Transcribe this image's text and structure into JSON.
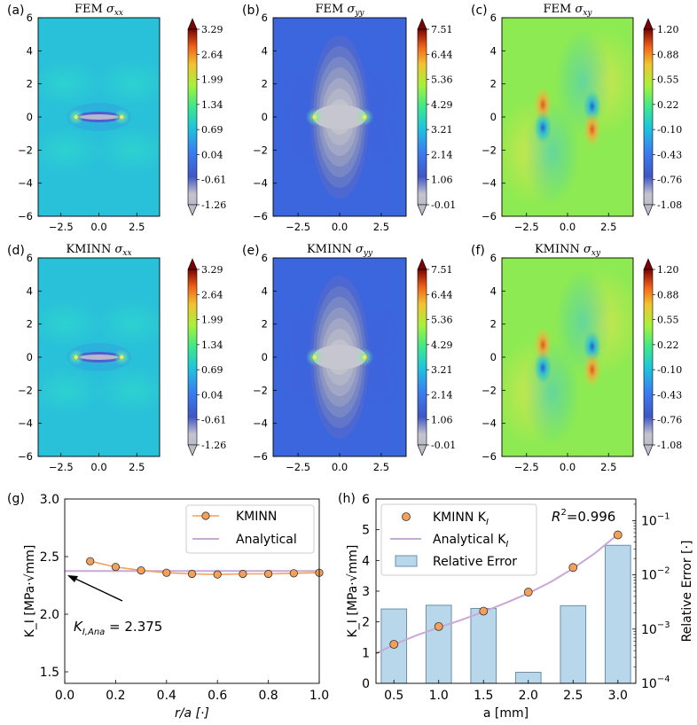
{
  "chart_data": [
    {
      "type": "heatmap",
      "panel": "(a)",
      "title": "FEM σxx",
      "title_main": "FEM",
      "title_sym": "σ",
      "title_sub": "xx",
      "x_ticks": [
        "−2.5",
        "0.0",
        "2.5"
      ],
      "x_tick_values": [
        -2.5,
        0.0,
        2.5
      ],
      "xlim": [
        -4,
        4
      ],
      "y_ticks": [
        "−6",
        "−4",
        "−2",
        "0",
        "2",
        "4",
        "6"
      ],
      "y_tick_values": [
        -6,
        -4,
        -2,
        0,
        2,
        4,
        6
      ],
      "ylim": [
        -6,
        6
      ],
      "colorbar_ticks": [
        "3.29",
        "2.64",
        "1.99",
        "1.34",
        "0.69",
        "0.04",
        "-0.61",
        "-1.26"
      ],
      "colorbar_range": [
        -1.26,
        3.29
      ]
    },
    {
      "type": "heatmap",
      "panel": "(b)",
      "title": "FEM σyy",
      "title_main": "FEM",
      "title_sym": "σ",
      "title_sub": "yy",
      "x_ticks": [
        "−2.5",
        "0.0",
        "2.5"
      ],
      "x_tick_values": [
        -2.5,
        0.0,
        2.5
      ],
      "xlim": [
        -4,
        4
      ],
      "y_ticks": [
        "−6",
        "−4",
        "−2",
        "0",
        "2",
        "4",
        "6"
      ],
      "y_tick_values": [
        -6,
        -4,
        -2,
        0,
        2,
        4,
        6
      ],
      "ylim": [
        -6,
        6
      ],
      "colorbar_ticks": [
        "7.51",
        "6.44",
        "5.36",
        "4.29",
        "3.21",
        "2.14",
        "1.06",
        "-0.01"
      ],
      "colorbar_range": [
        -0.01,
        7.51
      ]
    },
    {
      "type": "heatmap",
      "panel": "(c)",
      "title": "FEM σxy",
      "title_main": "FEM",
      "title_sym": "σ",
      "title_sub": "xy",
      "x_ticks": [
        "−2.5",
        "0.0",
        "2.5"
      ],
      "x_tick_values": [
        -2.5,
        0.0,
        2.5
      ],
      "xlim": [
        -4,
        4
      ],
      "y_ticks": [
        "−6",
        "−4",
        "−2",
        "0",
        "2",
        "4",
        "6"
      ],
      "y_tick_values": [
        -6,
        -4,
        -2,
        0,
        2,
        4,
        6
      ],
      "ylim": [
        -6,
        6
      ],
      "colorbar_ticks": [
        "1.20",
        "0.88",
        "0.55",
        "0.22",
        "-0.10",
        "-0.43",
        "-0.76",
        "-1.08"
      ],
      "colorbar_range": [
        -1.08,
        1.2
      ]
    },
    {
      "type": "heatmap",
      "panel": "(d)",
      "title": "KMINN σxx",
      "title_main": "KMINN",
      "title_sym": "σ",
      "title_sub": "xx",
      "x_ticks": [
        "−2.5",
        "0.0",
        "2.5"
      ],
      "x_tick_values": [
        -2.5,
        0.0,
        2.5
      ],
      "xlim": [
        -4,
        4
      ],
      "y_ticks": [
        "−6",
        "−4",
        "−2",
        "0",
        "2",
        "4",
        "6"
      ],
      "y_tick_values": [
        -6,
        -4,
        -2,
        0,
        2,
        4,
        6
      ],
      "ylim": [
        -6,
        6
      ],
      "colorbar_ticks": [
        "3.29",
        "2.64",
        "1.99",
        "1.34",
        "0.69",
        "0.04",
        "-0.61",
        "-1.26"
      ],
      "colorbar_range": [
        -1.26,
        3.29
      ]
    },
    {
      "type": "heatmap",
      "panel": "(e)",
      "title": "KMINN σyy",
      "title_main": "KMINN",
      "title_sym": "σ",
      "title_sub": "yy",
      "x_ticks": [
        "−2.5",
        "0.0",
        "2.5"
      ],
      "x_tick_values": [
        -2.5,
        0.0,
        2.5
      ],
      "xlim": [
        -4,
        4
      ],
      "y_ticks": [
        "−6",
        "−4",
        "−2",
        "0",
        "2",
        "4",
        "6"
      ],
      "y_tick_values": [
        -6,
        -4,
        -2,
        0,
        2,
        4,
        6
      ],
      "ylim": [
        -6,
        6
      ],
      "colorbar_ticks": [
        "7.51",
        "6.44",
        "5.36",
        "4.29",
        "3.21",
        "2.14",
        "1.06",
        "-0.01"
      ],
      "colorbar_range": [
        -0.01,
        7.51
      ]
    },
    {
      "type": "heatmap",
      "panel": "(f)",
      "title": "KMINN σxy",
      "title_main": "KMINN",
      "title_sym": "σ",
      "title_sub": "xy",
      "x_ticks": [
        "−2.5",
        "0.0",
        "2.5"
      ],
      "x_tick_values": [
        -2.5,
        0.0,
        2.5
      ],
      "xlim": [
        -4,
        4
      ],
      "y_ticks": [
        "−6",
        "−4",
        "−2",
        "0",
        "2",
        "4",
        "6"
      ],
      "y_tick_values": [
        -6,
        -4,
        -2,
        0,
        2,
        4,
        6
      ],
      "ylim": [
        -6,
        6
      ],
      "colorbar_ticks": [
        "1.20",
        "0.88",
        "0.55",
        "0.22",
        "-0.10",
        "-0.43",
        "-0.76",
        "-1.08"
      ],
      "colorbar_range": [
        -1.08,
        1.2
      ]
    },
    {
      "type": "line",
      "panel": "(g)",
      "xlabel": "r/a [·]",
      "ylabel": "K_I [MPa·√mm]",
      "xlim": [
        0.0,
        1.0
      ],
      "ylim": [
        1.4,
        3.0
      ],
      "x_ticks": [
        "0.0",
        "0.2",
        "0.4",
        "0.6",
        "0.8",
        "1.0"
      ],
      "x_tick_values": [
        0.0,
        0.2,
        0.4,
        0.6,
        0.8,
        1.0
      ],
      "y_ticks": [
        "1.5",
        "2.0",
        "2.5",
        "3.0"
      ],
      "y_tick_values": [
        1.5,
        2.0,
        2.5,
        3.0
      ],
      "series": [
        {
          "name": "KMINN",
          "color": "#f5a05a",
          "x": [
            0.1,
            0.2,
            0.3,
            0.4,
            0.5,
            0.6,
            0.7,
            0.8,
            0.9,
            1.0
          ],
          "values": [
            2.46,
            2.41,
            2.38,
            2.36,
            2.35,
            2.345,
            2.35,
            2.35,
            2.355,
            2.36
          ]
        },
        {
          "name": "Analytical",
          "color": "#c8a8d8",
          "x": [
            0.0,
            1.0
          ],
          "values": [
            2.375,
            2.375
          ]
        }
      ],
      "annotation": {
        "prefix": "K",
        "sub": "I,Ana",
        "value_text": " = 2.375",
        "value": 2.375
      },
      "legend": "top-right"
    },
    {
      "type": "bar+line",
      "panel": "(h)",
      "xlabel": "a [mm]",
      "ylabel": "K_I [MPa·√mm]",
      "ylabel_right": "Relative Error [·]",
      "xlim": [
        0.3,
        3.2
      ],
      "ylim": [
        0,
        6
      ],
      "x_ticks": [
        "0.5",
        "1.0",
        "1.5",
        "2.0",
        "2.5",
        "3.0"
      ],
      "x_tick_values": [
        0.5,
        1.0,
        1.5,
        2.0,
        2.5,
        3.0
      ],
      "y_ticks": [
        "0",
        "1",
        "2",
        "3",
        "4",
        "5",
        "6"
      ],
      "y_tick_values": [
        0,
        1,
        2,
        3,
        4,
        5,
        6
      ],
      "y2_scale": "log",
      "y2_lim": [
        0.0001,
        0.25
      ],
      "y2_ticks": [
        {
          "base": "10",
          "exp": "−4",
          "value": 0.0001
        },
        {
          "base": "10",
          "exp": "−3",
          "value": 0.001
        },
        {
          "base": "10",
          "exp": "−2",
          "value": 0.01
        },
        {
          "base": "10",
          "exp": "−1",
          "value": 0.1
        }
      ],
      "a_values": [
        0.5,
        1.0,
        1.5,
        2.0,
        2.5,
        3.0
      ],
      "kminn_K": [
        1.27,
        1.85,
        2.35,
        2.97,
        3.77,
        4.83
      ],
      "relative_error": [
        0.00235,
        0.00275,
        0.0024,
        0.00016,
        0.0027,
        0.035
      ],
      "analytical_curve": {
        "a": [
          0.3,
          0.5,
          0.75,
          1.0,
          1.25,
          1.5,
          1.75,
          2.0,
          2.25,
          2.5,
          2.75,
          3.0
        ],
        "K": [
          0.97,
          1.26,
          1.56,
          1.82,
          2.06,
          2.33,
          2.62,
          2.93,
          3.3,
          3.74,
          4.25,
          4.85
        ]
      },
      "legend_entries": [
        {
          "name": "KMINN K",
          "sub": "I"
        },
        {
          "name": "Analytical K",
          "sub": "I"
        },
        {
          "name": "Relative Error",
          "sub": ""
        }
      ],
      "r2_label": "R",
      "r2_sup": "2",
      "r2_value_text": "=0.996",
      "r2_value": 0.996,
      "colors": {
        "kminn": "#f5a05a",
        "analytical": "#c8a8d8",
        "bars": "#b8d7ea",
        "bar_edge": "#6b8fa8"
      }
    }
  ]
}
